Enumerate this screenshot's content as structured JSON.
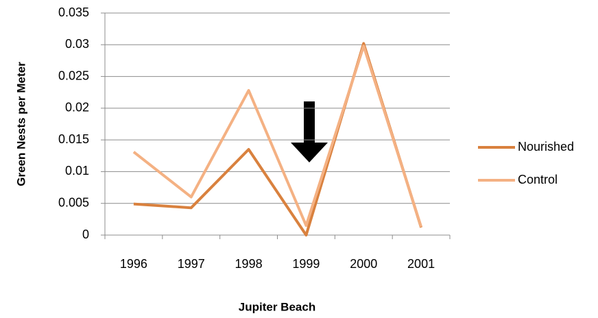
{
  "chart_data": {
    "type": "line",
    "x_label": "Jupiter Beach",
    "y_label": "Green Nests per Meter",
    "categories": [
      "1996",
      "1997",
      "1998",
      "1999",
      "2000",
      "2001"
    ],
    "series": [
      {
        "name": "Nourished",
        "color": "#d9813e",
        "values": [
          0.0049,
          0.0043,
          0.0135,
          0.0,
          0.0302,
          0.0012
        ]
      },
      {
        "name": "Control",
        "color": "#f4b183",
        "values": [
          0.0131,
          0.006,
          0.0228,
          0.0015,
          0.0298,
          0.0013
        ]
      }
    ],
    "ylim": [
      0,
      0.035
    ],
    "yticks": [
      0,
      0.005,
      0.01,
      0.015,
      0.02,
      0.025,
      0.03,
      0.035
    ],
    "grid": true,
    "legend": "right"
  }
}
